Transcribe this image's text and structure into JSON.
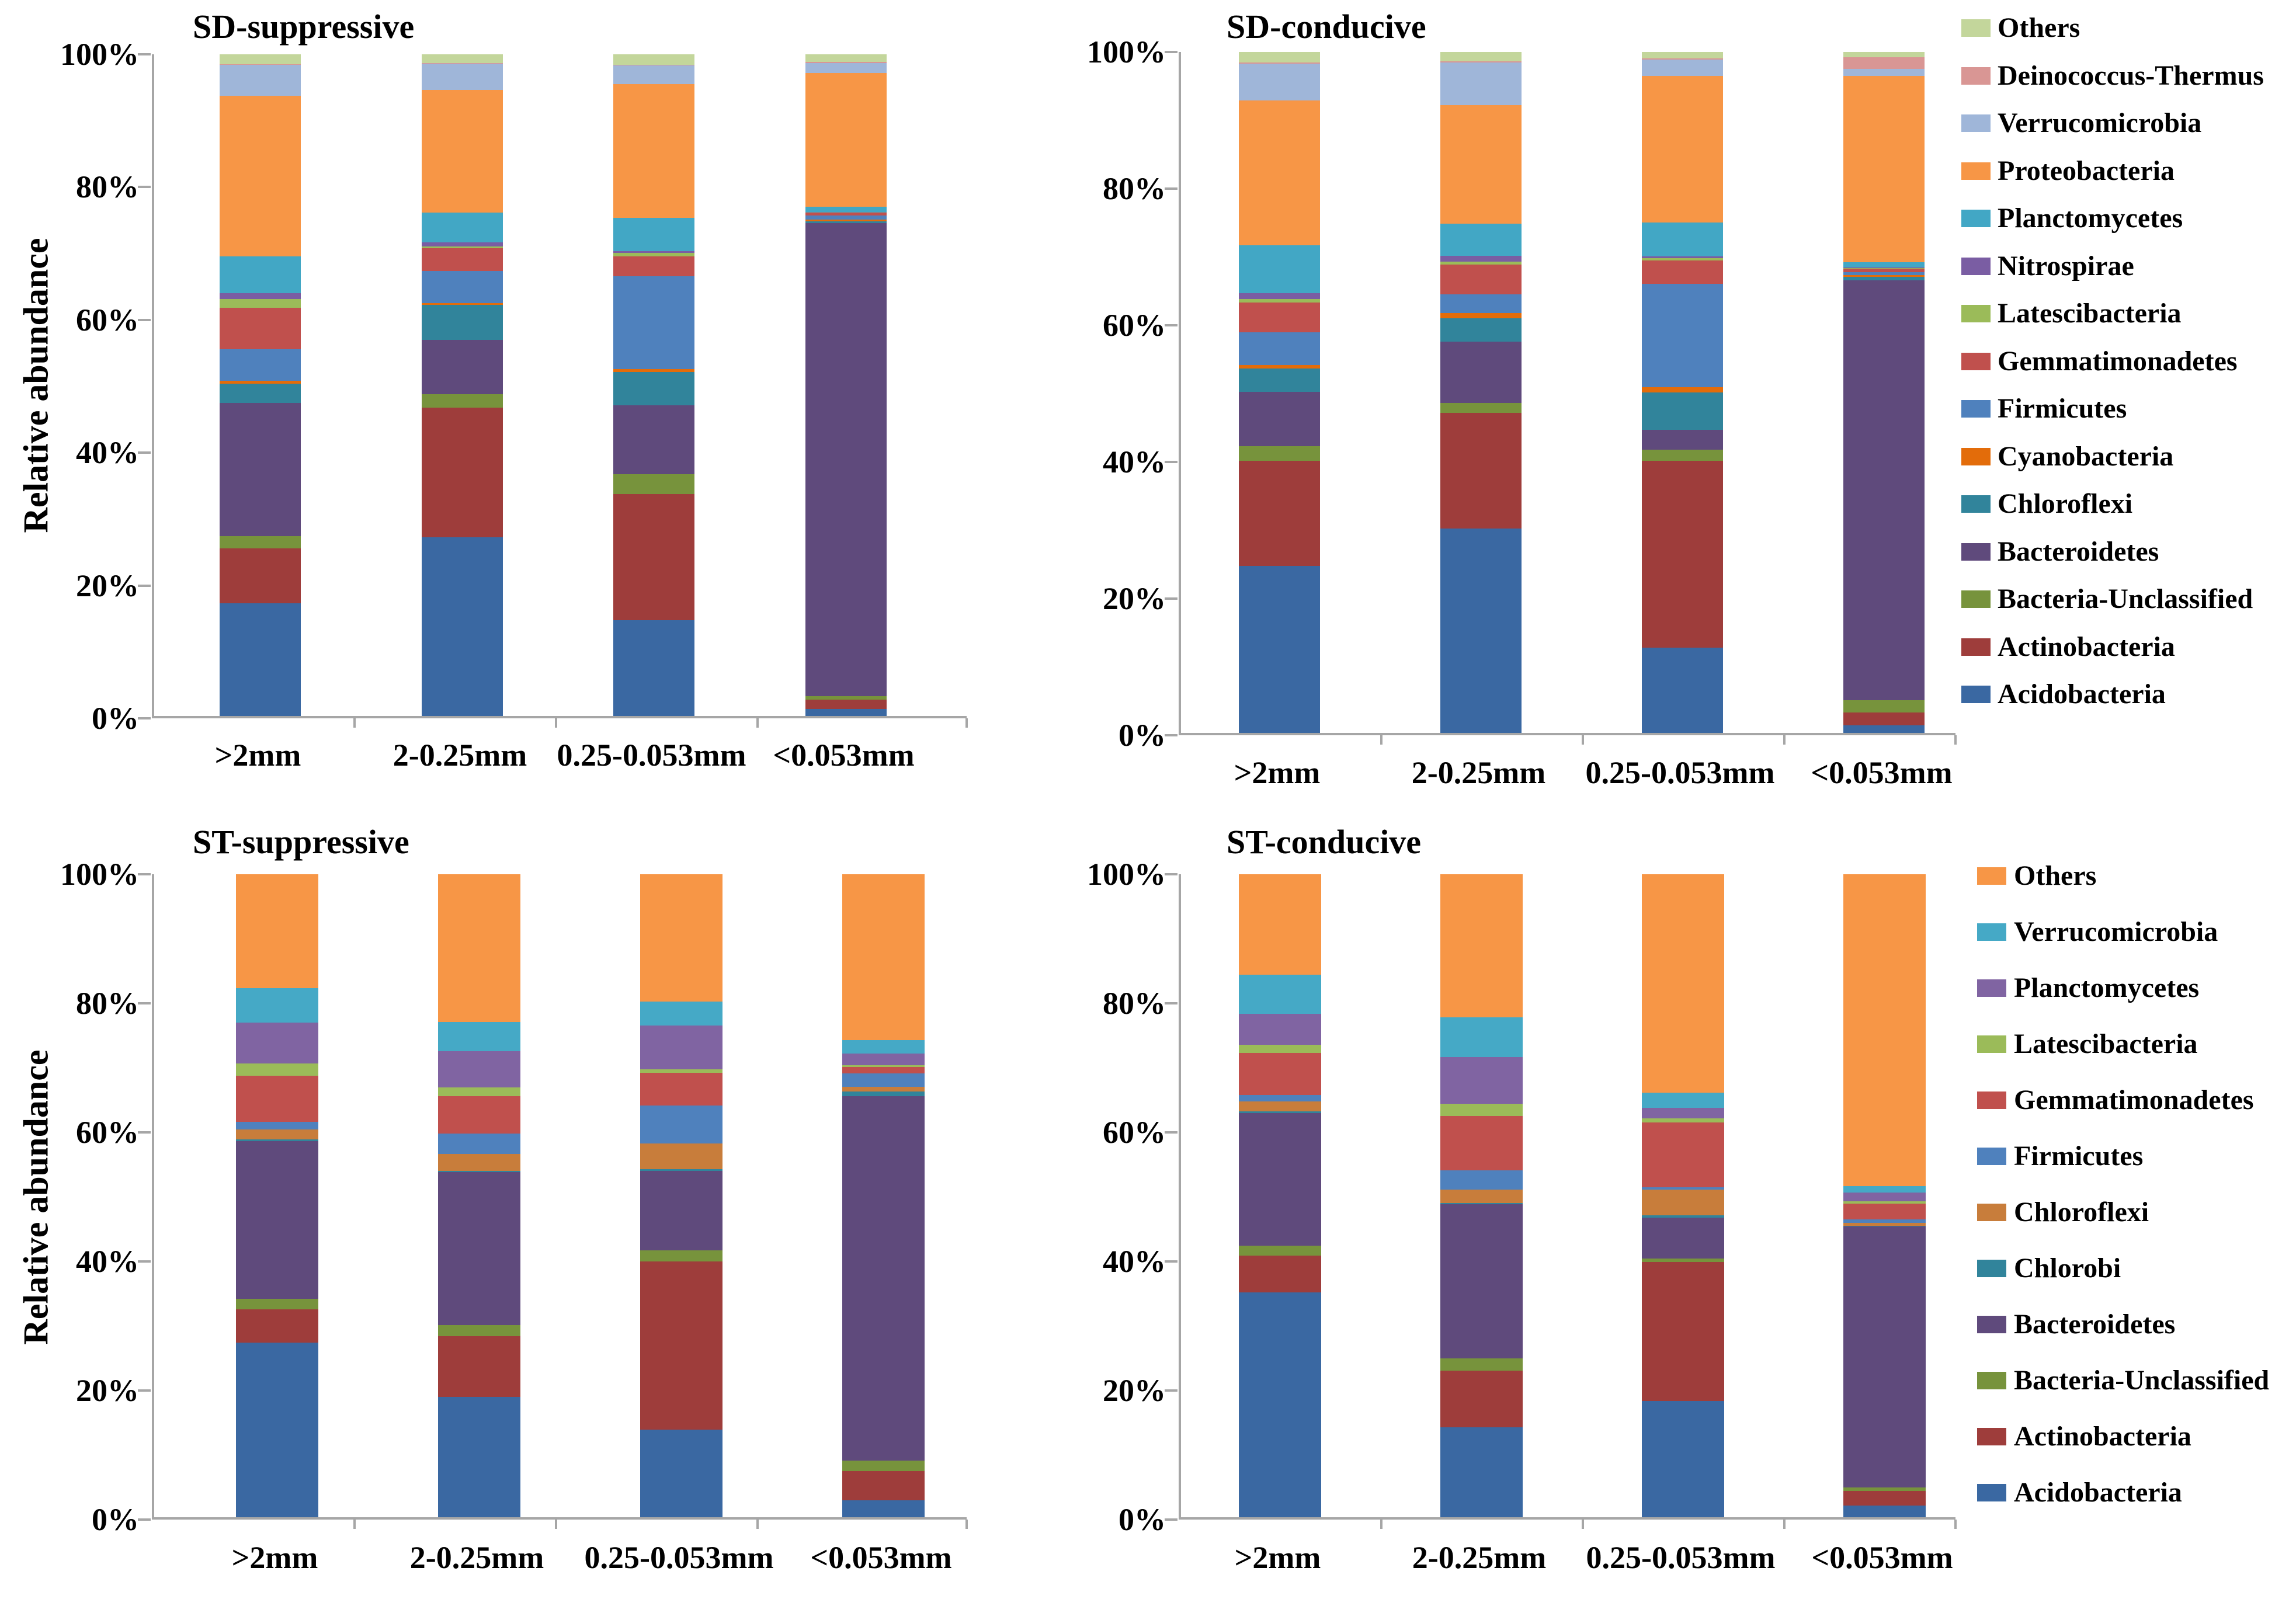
{
  "figure": {
    "y_axis_label": "Relative abundance",
    "y_ticks": [
      "0%",
      "20%",
      "40%",
      "60%",
      "80%",
      "100%"
    ],
    "categories": [
      ">2mm",
      "2-0.25mm",
      "0.25-0.053mm",
      "<0.053mm"
    ]
  },
  "chart_data": [
    {
      "type": "bar",
      "stacked": true,
      "title": "SD-suppressive",
      "ylabel": "Relative abundance",
      "ylim": [
        0,
        100
      ],
      "grid": false,
      "categories": [
        ">2mm",
        "2-0.25mm",
        "0.25-0.053mm",
        "<0.053mm"
      ],
      "series": [
        {
          "name": "Acidobacteria",
          "color": "#3a68a2",
          "values": [
            17.0,
            27.0,
            14.5,
            1.1
          ]
        },
        {
          "name": "Actinobacteria",
          "color": "#9e3d3b",
          "values": [
            8.3,
            19.6,
            19.0,
            1.4
          ]
        },
        {
          "name": "Bacteria-Unclassified",
          "color": "#77933c",
          "values": [
            1.9,
            2.0,
            3.0,
            0.5
          ]
        },
        {
          "name": "Bacteroidetes",
          "color": "#5f4a7c",
          "values": [
            20.1,
            8.2,
            10.5,
            71.5
          ]
        },
        {
          "name": "Chloroflexi",
          "color": "#31849b",
          "values": [
            2.9,
            5.3,
            5.0,
            0.3
          ]
        },
        {
          "name": "Cyanobacteria",
          "color": "#e36c0a",
          "values": [
            0.5,
            0.3,
            0.4,
            0.2
          ]
        },
        {
          "name": "Firmicutes",
          "color": "#4f81bd",
          "values": [
            4.7,
            4.9,
            14.1,
            0.6
          ]
        },
        {
          "name": "Gemmatimonadetes",
          "color": "#c0504d",
          "values": [
            6.3,
            3.4,
            3.0,
            0.4
          ]
        },
        {
          "name": "Latescibacteria",
          "color": "#9bbb59",
          "values": [
            1.3,
            0.3,
            0.5,
            0.1
          ]
        },
        {
          "name": "Nitrospirae",
          "color": "#7a5da3",
          "values": [
            0.9,
            0.6,
            0.3,
            0.1
          ]
        },
        {
          "name": "Planctomycetes",
          "color": "#42a7c5",
          "values": [
            5.6,
            4.5,
            5.0,
            0.8
          ]
        },
        {
          "name": "Proteobacteria",
          "color": "#f79646",
          "values": [
            24.2,
            18.5,
            20.2,
            20.2
          ]
        },
        {
          "name": "Verrucomicrobia",
          "color": "#9fb6d9",
          "values": [
            4.7,
            4.0,
            2.8,
            1.5
          ]
        },
        {
          "name": "Deinococcus-Thermus",
          "color": "#d99694",
          "values": [
            0.1,
            0.1,
            0.1,
            0.2
          ]
        },
        {
          "name": "Others",
          "color": "#c3d69b",
          "values": [
            1.5,
            1.3,
            1.6,
            1.1
          ]
        }
      ]
    },
    {
      "type": "bar",
      "stacked": true,
      "title": "SD-conducive",
      "ylabel": "",
      "ylim": [
        0,
        100
      ],
      "grid": false,
      "categories": [
        ">2mm",
        "2-0.25mm",
        "0.25-0.053mm",
        "<0.053mm"
      ],
      "series": [
        {
          "name": "Acidobacteria",
          "color": "#3a68a2",
          "values": [
            24.5,
            30.0,
            12.5,
            1.1
          ]
        },
        {
          "name": "Actinobacteria",
          "color": "#9e3d3b",
          "values": [
            15.5,
            17.0,
            27.5,
            1.9
          ]
        },
        {
          "name": "Bacteria-Unclassified",
          "color": "#77933c",
          "values": [
            2.1,
            1.5,
            1.6,
            1.8
          ]
        },
        {
          "name": "Bacteroidetes",
          "color": "#5f4a7c",
          "values": [
            8.0,
            9.0,
            2.9,
            61.7
          ]
        },
        {
          "name": "Chloroflexi",
          "color": "#31849b",
          "values": [
            3.4,
            3.4,
            5.5,
            0.5
          ]
        },
        {
          "name": "Cyanobacteria",
          "color": "#e36c0a",
          "values": [
            0.5,
            0.8,
            0.8,
            0.2
          ]
        },
        {
          "name": "Firmicutes",
          "color": "#4f81bd",
          "values": [
            4.8,
            2.7,
            15.2,
            0.5
          ]
        },
        {
          "name": "Gemmatimonadetes",
          "color": "#c0504d",
          "values": [
            4.4,
            4.4,
            3.4,
            0.5
          ]
        },
        {
          "name": "Latescibacteria",
          "color": "#9bbb59",
          "values": [
            0.5,
            0.4,
            0.3,
            0.1
          ]
        },
        {
          "name": "Nitrospirae",
          "color": "#7a5da3",
          "values": [
            0.9,
            0.9,
            0.3,
            0.1
          ]
        },
        {
          "name": "Planctomycetes",
          "color": "#42a7c5",
          "values": [
            7.0,
            4.7,
            5.0,
            0.7
          ]
        },
        {
          "name": "Proteobacteria",
          "color": "#f79646",
          "values": [
            21.3,
            17.4,
            21.5,
            27.4
          ]
        },
        {
          "name": "Verrucomicrobia",
          "color": "#9fb6d9",
          "values": [
            5.4,
            6.3,
            2.4,
            1.0
          ]
        },
        {
          "name": "Deinococcus-Thermus",
          "color": "#d99694",
          "values": [
            0.2,
            0.1,
            0.2,
            1.7
          ]
        },
        {
          "name": "Others",
          "color": "#c3d69b",
          "values": [
            1.5,
            1.4,
            0.9,
            0.8
          ]
        }
      ]
    },
    {
      "type": "bar",
      "stacked": true,
      "title": "ST-suppressive",
      "ylabel": "Relative abundance",
      "ylim": [
        0,
        100
      ],
      "grid": false,
      "categories": [
        ">2mm",
        "2-0.25mm",
        "0.25-0.053mm",
        "<0.053mm"
      ],
      "series": [
        {
          "name": "Acidobacteria",
          "color": "#3a68a2",
          "values": [
            27.2,
            18.7,
            13.6,
            2.6
          ]
        },
        {
          "name": "Actinobacteria",
          "color": "#9e3d3b",
          "values": [
            5.1,
            9.5,
            26.2,
            4.6
          ]
        },
        {
          "name": "Bacteria-Unclassified",
          "color": "#77933c",
          "values": [
            1.7,
            1.7,
            1.7,
            1.6
          ]
        },
        {
          "name": "Bacteroidetes",
          "color": "#5f4a7c",
          "values": [
            24.5,
            23.8,
            12.4,
            56.7
          ]
        },
        {
          "name": "Chlorobi",
          "color": "#31849b",
          "values": [
            0.3,
            0.2,
            0.2,
            0.7
          ]
        },
        {
          "name": "Chloroflexi",
          "color": "#c87d3b",
          "values": [
            1.5,
            2.6,
            4.0,
            0.7
          ]
        },
        {
          "name": "Firmicutes",
          "color": "#4f81bd",
          "values": [
            1.2,
            3.2,
            5.9,
            2.1
          ]
        },
        {
          "name": "Gemmatimonadetes",
          "color": "#c0504d",
          "values": [
            7.2,
            5.8,
            5.1,
            1.0
          ]
        },
        {
          "name": "Latescibacteria",
          "color": "#9bbb59",
          "values": [
            1.9,
            1.4,
            0.6,
            0.3
          ]
        },
        {
          "name": "Planctomycetes",
          "color": "#8064a2",
          "values": [
            6.3,
            5.6,
            6.8,
            1.8
          ]
        },
        {
          "name": "Verrucomicrobia",
          "color": "#45a9c6",
          "values": [
            5.4,
            4.5,
            3.7,
            2.1
          ]
        },
        {
          "name": "Others",
          "color": "#f79646",
          "values": [
            17.7,
            23.0,
            19.8,
            25.8
          ]
        }
      ]
    },
    {
      "type": "bar",
      "stacked": true,
      "title": "ST-conducive",
      "ylabel": "",
      "ylim": [
        0,
        100
      ],
      "grid": false,
      "categories": [
        ">2mm",
        "2-0.25mm",
        "0.25-0.053mm",
        "<0.053mm"
      ],
      "series": [
        {
          "name": "Acidobacteria",
          "color": "#3a68a2",
          "values": [
            35.0,
            14.0,
            18.1,
            1.8
          ]
        },
        {
          "name": "Actinobacteria",
          "color": "#9e3d3b",
          "values": [
            5.7,
            8.8,
            21.6,
            2.3
          ]
        },
        {
          "name": "Bacteria-Unclassified",
          "color": "#77933c",
          "values": [
            1.5,
            1.9,
            0.5,
            0.5
          ]
        },
        {
          "name": "Bacteroidetes",
          "color": "#5f4a7c",
          "values": [
            20.7,
            24.0,
            6.4,
            40.6
          ]
        },
        {
          "name": "Chlorobi",
          "color": "#31849b",
          "values": [
            0.2,
            0.2,
            0.4,
            0.1
          ]
        },
        {
          "name": "Chloroflexi",
          "color": "#c87d3b",
          "values": [
            1.6,
            2.1,
            4.0,
            0.5
          ]
        },
        {
          "name": "Firmicutes",
          "color": "#4f81bd",
          "values": [
            1.0,
            3.0,
            0.3,
            0.5
          ]
        },
        {
          "name": "Gemmatimonadetes",
          "color": "#c0504d",
          "values": [
            6.5,
            8.4,
            10.1,
            2.5
          ]
        },
        {
          "name": "Latescibacteria",
          "color": "#9bbb59",
          "values": [
            1.3,
            1.9,
            0.6,
            0.3
          ]
        },
        {
          "name": "Planctomycetes",
          "color": "#8064a2",
          "values": [
            4.8,
            7.3,
            1.7,
            1.4
          ]
        },
        {
          "name": "Verrucomicrobia",
          "color": "#45a9c6",
          "values": [
            6.1,
            6.2,
            2.3,
            1.0
          ]
        },
        {
          "name": "Others",
          "color": "#f79646",
          "values": [
            15.6,
            22.2,
            34.0,
            48.5
          ]
        }
      ]
    }
  ],
  "legends": [
    {
      "applies_to": [
        "SD-suppressive",
        "SD-conducive"
      ],
      "items": [
        {
          "label": "Others",
          "color": "#c3d69b"
        },
        {
          "label": "Deinococcus-Thermus",
          "color": "#d99694"
        },
        {
          "label": "Verrucomicrobia",
          "color": "#9fb6d9"
        },
        {
          "label": "Proteobacteria",
          "color": "#f79646"
        },
        {
          "label": "Planctomycetes",
          "color": "#42a7c5"
        },
        {
          "label": "Nitrospirae",
          "color": "#7a5da3"
        },
        {
          "label": "Latescibacteria",
          "color": "#9bbb59"
        },
        {
          "label": "Gemmatimonadetes",
          "color": "#c0504d"
        },
        {
          "label": "Firmicutes",
          "color": "#4f81bd"
        },
        {
          "label": "Cyanobacteria",
          "color": "#e36c0a"
        },
        {
          "label": "Chloroflexi",
          "color": "#31849b"
        },
        {
          "label": "Bacteroidetes",
          "color": "#5f4a7c"
        },
        {
          "label": "Bacteria-Unclassified",
          "color": "#77933c"
        },
        {
          "label": "Actinobacteria",
          "color": "#9e3d3b"
        },
        {
          "label": "Acidobacteria",
          "color": "#3a68a2"
        }
      ]
    },
    {
      "applies_to": [
        "ST-suppressive",
        "ST-conducive"
      ],
      "items": [
        {
          "label": "Others",
          "color": "#f79646"
        },
        {
          "label": "Verrucomicrobia",
          "color": "#45a9c6"
        },
        {
          "label": "Planctomycetes",
          "color": "#8064a2"
        },
        {
          "label": "Latescibacteria",
          "color": "#9bbb59"
        },
        {
          "label": "Gemmatimonadetes",
          "color": "#c0504d"
        },
        {
          "label": "Firmicutes",
          "color": "#4f81bd"
        },
        {
          "label": "Chloroflexi",
          "color": "#c87d3b"
        },
        {
          "label": "Chlorobi",
          "color": "#31849b"
        },
        {
          "label": "Bacteroidetes",
          "color": "#5f4a7c"
        },
        {
          "label": "Bacteria-Unclassified",
          "color": "#77933c"
        },
        {
          "label": "Actinobacteria",
          "color": "#9e3d3b"
        },
        {
          "label": "Acidobacteria",
          "color": "#3a68a2"
        }
      ]
    }
  ]
}
